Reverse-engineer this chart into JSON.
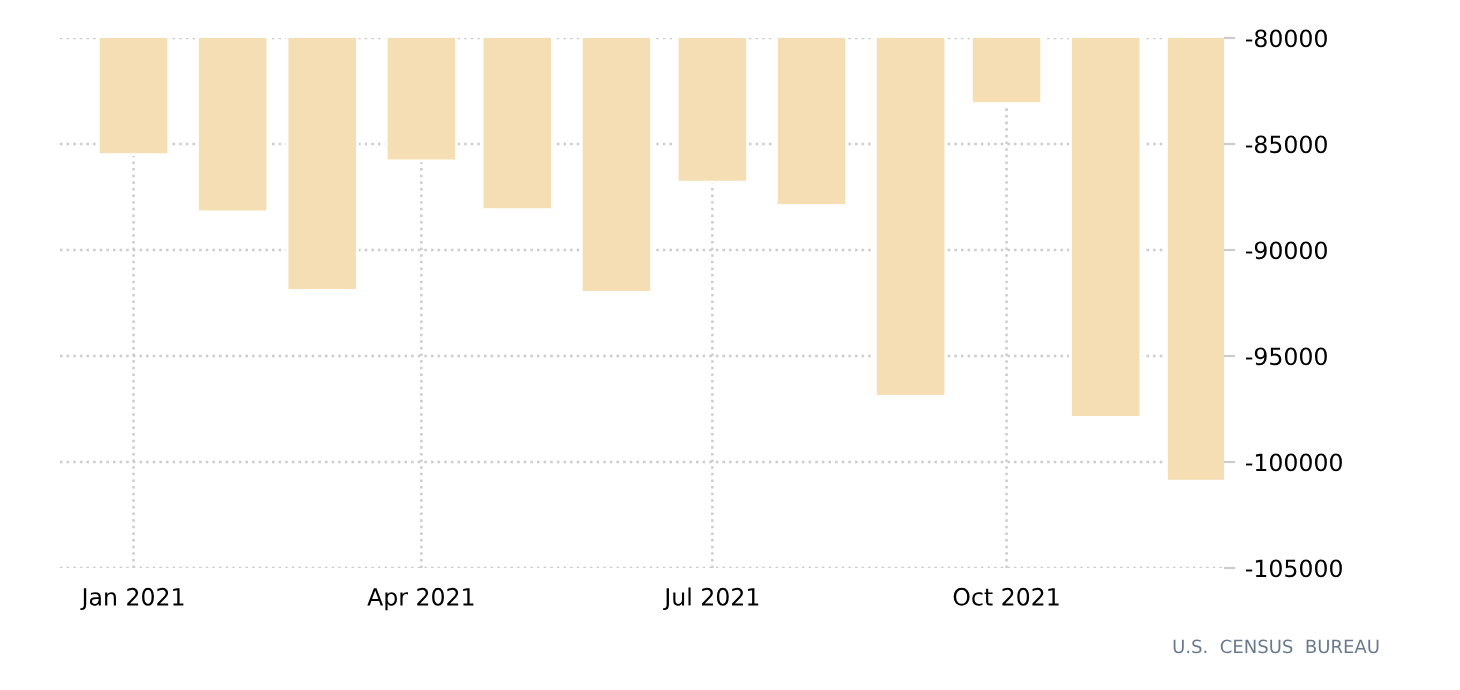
{
  "chart_data": {
    "type": "bar",
    "x": [
      "2021-01",
      "2021-02",
      "2021-03",
      "2021-04",
      "2021-05",
      "2021-06",
      "2021-07",
      "2021-08",
      "2021-09",
      "2021-10",
      "2021-11",
      "2021-12"
    ],
    "values": [
      -85500,
      -88200,
      -91900,
      -85800,
      -88100,
      -92000,
      -86800,
      -87900,
      -96900,
      -83100,
      -97900,
      -100900
    ],
    "color": "#f5deb3",
    "xlim": [
      "2020-12-09",
      "2021-12-08"
    ],
    "xticks": [
      {
        "value": "2021-01",
        "label": "Jan 2021"
      },
      {
        "value": "2021-04",
        "label": "Apr 2021"
      },
      {
        "value": "2021-07",
        "label": "Jul 2021"
      },
      {
        "value": "2021-10",
        "label": "Oct 2021"
      }
    ],
    "ylim": [
      -105000,
      -80000
    ],
    "yticks": [
      -105000,
      -100000,
      -95000,
      -90000,
      -85000,
      -80000
    ],
    "grid": true,
    "annotations": [
      "U.S.  CENSUS  BUREAU"
    ]
  }
}
